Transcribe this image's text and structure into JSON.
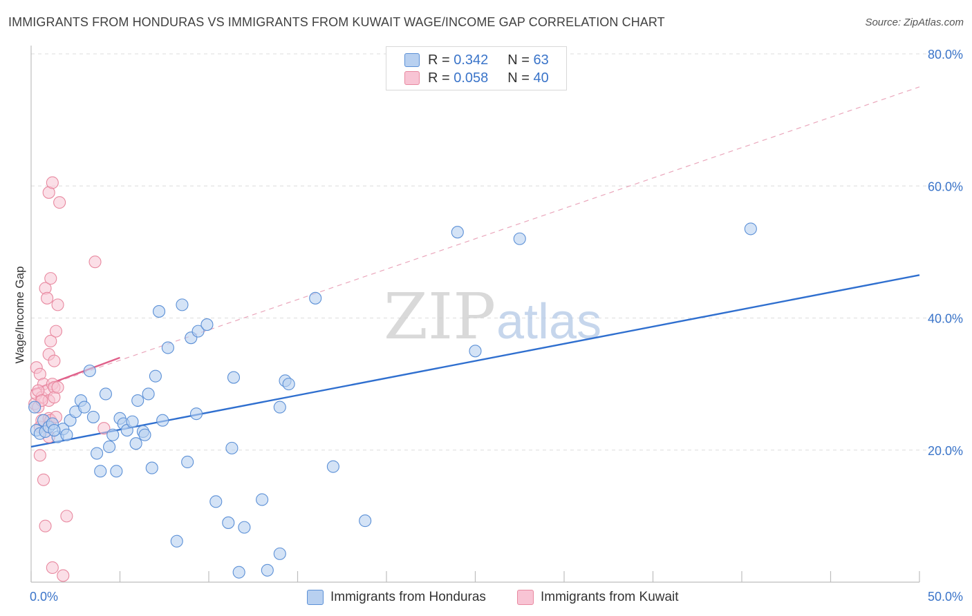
{
  "header": {
    "title": "IMMIGRANTS FROM HONDURAS VS IMMIGRANTS FROM KUWAIT WAGE/INCOME GAP CORRELATION CHART",
    "source": "Source: ZipAtlas.com"
  },
  "watermark": {
    "zip": "ZIP",
    "atlas": "atlas"
  },
  "legend": {
    "r_label": "R =",
    "n_label": "N =",
    "rows": [
      {
        "r": "0.342",
        "n": "63"
      },
      {
        "r": "0.058",
        "n": "40"
      }
    ]
  },
  "bottom_legend": {
    "honduras": "Immigrants from Honduras",
    "kuwait": "Immigrants from Kuwait"
  },
  "colors": {
    "honduras_fill": "#b8d0f0",
    "honduras_stroke": "#5a8fd6",
    "honduras_line": "#2f6fcf",
    "kuwait_fill": "#f8c4d4",
    "kuwait_stroke": "#e8889f",
    "kuwait_line": "#e0608a",
    "axis_text": "#3a74c9",
    "grid": "#dcdcdc"
  },
  "chart_data": {
    "type": "scatter",
    "title": "IMMIGRANTS FROM HONDURAS VS IMMIGRANTS FROM KUWAIT WAGE/INCOME GAP CORRELATION CHART",
    "xlabel": "",
    "ylabel": "Wage/Income Gap",
    "xlim": [
      0,
      50
    ],
    "ylim": [
      0,
      80
    ],
    "x_ticks": [
      0,
      5,
      10,
      15,
      20,
      25,
      30,
      35,
      40,
      45,
      50
    ],
    "x_tick_labels": {
      "0": "0.0%",
      "50": "50.0%"
    },
    "y_ticks": [
      20,
      40,
      60,
      80
    ],
    "y_tick_labels": [
      "20.0%",
      "40.0%",
      "60.0%",
      "80.0%"
    ],
    "grid": true,
    "legend_position": "top-center",
    "series": [
      {
        "name": "Immigrants from Honduras",
        "R": 0.342,
        "N": 63,
        "trend": {
          "x": [
            0,
            50
          ],
          "y": [
            20.5,
            46.5
          ],
          "style": "solid"
        },
        "points": [
          [
            0.3,
            23.0
          ],
          [
            0.5,
            22.5
          ],
          [
            0.7,
            24.5
          ],
          [
            0.8,
            22.8
          ],
          [
            1.0,
            23.5
          ],
          [
            1.2,
            24.0
          ],
          [
            1.5,
            22.0
          ],
          [
            1.8,
            23.2
          ],
          [
            2.0,
            22.3
          ],
          [
            2.2,
            24.5
          ],
          [
            2.5,
            25.8
          ],
          [
            2.8,
            27.5
          ],
          [
            3.0,
            26.5
          ],
          [
            3.3,
            32.0
          ],
          [
            3.5,
            25.0
          ],
          [
            3.7,
            19.5
          ],
          [
            3.9,
            16.8
          ],
          [
            4.2,
            28.5
          ],
          [
            4.4,
            20.5
          ],
          [
            4.6,
            22.3
          ],
          [
            4.8,
            16.8
          ],
          [
            5.0,
            24.8
          ],
          [
            5.2,
            24.0
          ],
          [
            5.4,
            23.0
          ],
          [
            5.7,
            24.3
          ],
          [
            5.9,
            21.0
          ],
          [
            6.0,
            27.5
          ],
          [
            6.3,
            22.8
          ],
          [
            6.4,
            22.3
          ],
          [
            6.6,
            28.5
          ],
          [
            6.8,
            17.3
          ],
          [
            7.0,
            31.2
          ],
          [
            7.2,
            41.0
          ],
          [
            7.4,
            24.5
          ],
          [
            7.7,
            35.5
          ],
          [
            8.2,
            6.2
          ],
          [
            8.5,
            42.0
          ],
          [
            8.8,
            18.2
          ],
          [
            9.0,
            37.0
          ],
          [
            9.3,
            25.5
          ],
          [
            9.4,
            38.0
          ],
          [
            9.9,
            39.0
          ],
          [
            10.4,
            12.2
          ],
          [
            11.1,
            9.0
          ],
          [
            11.3,
            20.3
          ],
          [
            11.4,
            31.0
          ],
          [
            11.7,
            1.5
          ],
          [
            12.0,
            8.3
          ],
          [
            13.0,
            12.5
          ],
          [
            13.3,
            1.8
          ],
          [
            14.0,
            4.3
          ],
          [
            14.0,
            26.5
          ],
          [
            14.3,
            30.5
          ],
          [
            14.5,
            30.0
          ],
          [
            16.0,
            43.0
          ],
          [
            17.0,
            17.5
          ],
          [
            18.8,
            9.3
          ],
          [
            24.0,
            53.0
          ],
          [
            25.0,
            35.0
          ],
          [
            27.5,
            52.0
          ],
          [
            40.5,
            53.5
          ],
          [
            0.2,
            26.5
          ],
          [
            1.3,
            23.0
          ]
        ]
      },
      {
        "name": "Immigrants from Kuwait",
        "R": 0.058,
        "N": 40,
        "trend": {
          "x": [
            0,
            5
          ],
          "y": [
            29.0,
            34.0
          ],
          "style": "solid",
          "extended": {
            "x": [
              0,
              50
            ],
            "y": [
              29.0,
              75.0
            ],
            "style": "dashed"
          }
        },
        "points": [
          [
            0.2,
            27.0
          ],
          [
            0.3,
            28.5
          ],
          [
            0.3,
            32.5
          ],
          [
            0.4,
            26.5
          ],
          [
            0.5,
            31.5
          ],
          [
            0.5,
            23.5
          ],
          [
            0.5,
            19.2
          ],
          [
            0.6,
            28.0
          ],
          [
            0.6,
            24.5
          ],
          [
            0.7,
            30.0
          ],
          [
            0.7,
            15.5
          ],
          [
            0.8,
            44.5
          ],
          [
            0.8,
            8.5
          ],
          [
            0.9,
            29.0
          ],
          [
            0.9,
            43.0
          ],
          [
            1.0,
            24.8
          ],
          [
            1.0,
            22.0
          ],
          [
            1.0,
            27.5
          ],
          [
            1.0,
            59.0
          ],
          [
            1.0,
            34.5
          ],
          [
            1.1,
            36.5
          ],
          [
            1.1,
            46.0
          ],
          [
            1.1,
            24.5
          ],
          [
            1.2,
            2.2
          ],
          [
            1.2,
            60.5
          ],
          [
            1.2,
            30.0
          ],
          [
            1.3,
            29.5
          ],
          [
            1.3,
            33.5
          ],
          [
            1.3,
            28.0
          ],
          [
            1.4,
            25.0
          ],
          [
            1.4,
            38.0
          ],
          [
            1.5,
            42.0
          ],
          [
            1.6,
            57.5
          ],
          [
            1.8,
            1.0
          ],
          [
            2.0,
            10.0
          ],
          [
            1.5,
            29.5
          ],
          [
            3.6,
            48.5
          ],
          [
            4.1,
            23.3
          ],
          [
            0.4,
            29.0
          ],
          [
            0.6,
            27.5
          ]
        ]
      }
    ]
  }
}
